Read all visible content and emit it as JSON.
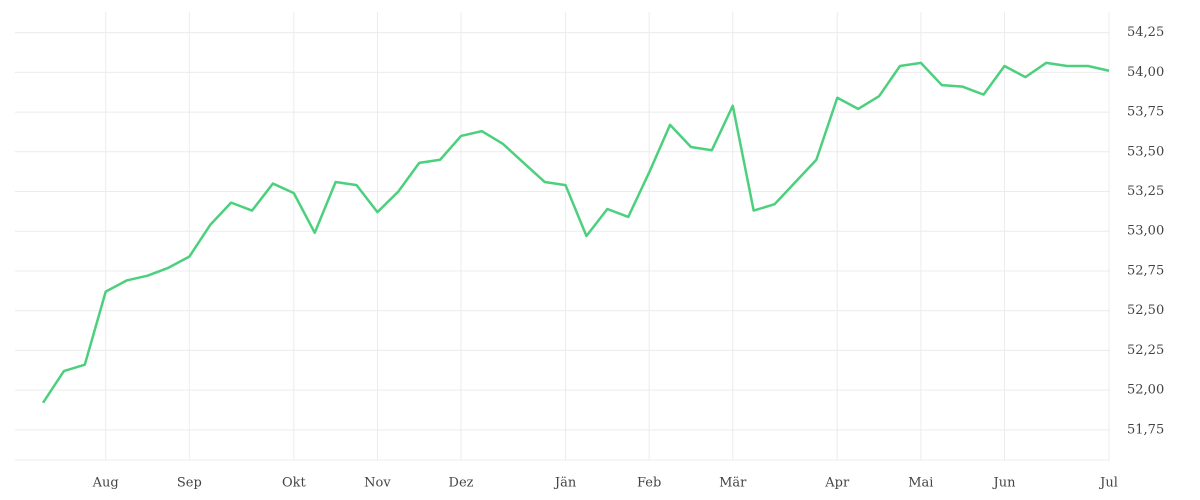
{
  "chart_data": {
    "type": "line",
    "categories": [
      null,
      null,
      null,
      "Aug",
      null,
      null,
      null,
      "Sep",
      null,
      null,
      null,
      null,
      "Okt",
      null,
      null,
      null,
      "Nov",
      null,
      null,
      null,
      "Dez",
      null,
      null,
      null,
      null,
      "Jän",
      null,
      null,
      null,
      "Feb",
      null,
      null,
      null,
      "Mär",
      null,
      null,
      null,
      null,
      "Apr",
      null,
      null,
      null,
      "Mai",
      null,
      null,
      null,
      "Jun",
      null,
      null,
      null,
      null,
      "Jul"
    ],
    "series": [
      {
        "color": "#4cd07d",
        "values": [
          51.92,
          52.12,
          52.16,
          52.62,
          52.69,
          52.72,
          52.77,
          52.84,
          53.04,
          53.18,
          53.13,
          53.3,
          53.24,
          52.99,
          53.31,
          53.29,
          53.12,
          53.25,
          53.43,
          53.45,
          53.6,
          53.63,
          53.55,
          53.43,
          53.31,
          53.29,
          52.97,
          53.14,
          53.09,
          53.37,
          53.67,
          53.53,
          53.51,
          53.79,
          53.13,
          53.17,
          53.31,
          53.45,
          53.84,
          53.77,
          53.85,
          54.04,
          54.06,
          53.92,
          53.91,
          53.86,
          54.04,
          53.97,
          54.06,
          54.04,
          54.04,
          54.01
        ]
      }
    ],
    "ylim": [
      51.56,
      54.38
    ],
    "yticks": [
      {
        "value": 51.75,
        "label": "51,75"
      },
      {
        "value": 52,
        "label": "52,00"
      },
      {
        "value": 52.25,
        "label": "52,25"
      },
      {
        "value": 52.5,
        "label": "52,50"
      },
      {
        "value": 52.75,
        "label": "52,75"
      },
      {
        "value": 53,
        "label": "53,00"
      },
      {
        "value": 53.25,
        "label": "53,25"
      },
      {
        "value": 53.5,
        "label": "53,50"
      },
      {
        "value": 53.75,
        "label": "53,75"
      },
      {
        "value": 54,
        "label": "54,00"
      },
      {
        "value": 54.25,
        "label": "54,25"
      }
    ],
    "grid": true
  }
}
